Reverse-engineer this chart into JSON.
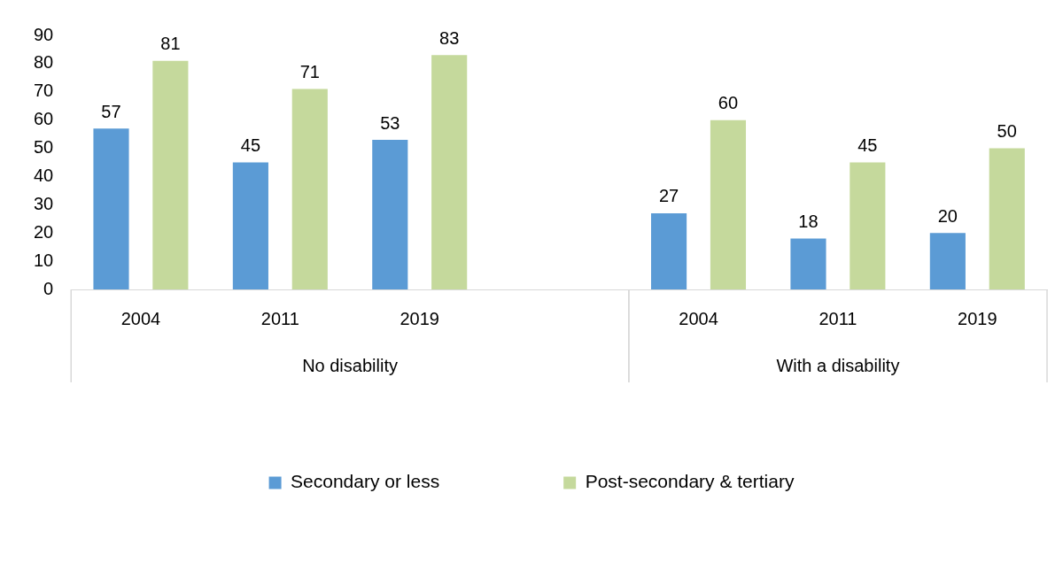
{
  "chart_data": {
    "type": "bar",
    "categories": [
      "2004",
      "2011",
      "2019",
      null,
      "2004",
      "2011",
      "2019"
    ],
    "series": [
      {
        "name": "Secondary or less",
        "color": "#5b9bd5",
        "values": [
          57,
          45,
          53,
          null,
          27,
          18,
          20
        ]
      },
      {
        "name": "Post-secondary & tertiary",
        "color": "#c5d99c",
        "values": [
          81,
          71,
          83,
          null,
          60,
          45,
          50
        ]
      }
    ],
    "ylim": [
      0,
      90
    ],
    "yticks": [
      0,
      10,
      20,
      30,
      40,
      50,
      60,
      70,
      80,
      90
    ],
    "grid": false,
    "legend": "bottom",
    "data_labels": true,
    "annotations": [
      "No disability",
      "With a disability"
    ]
  }
}
